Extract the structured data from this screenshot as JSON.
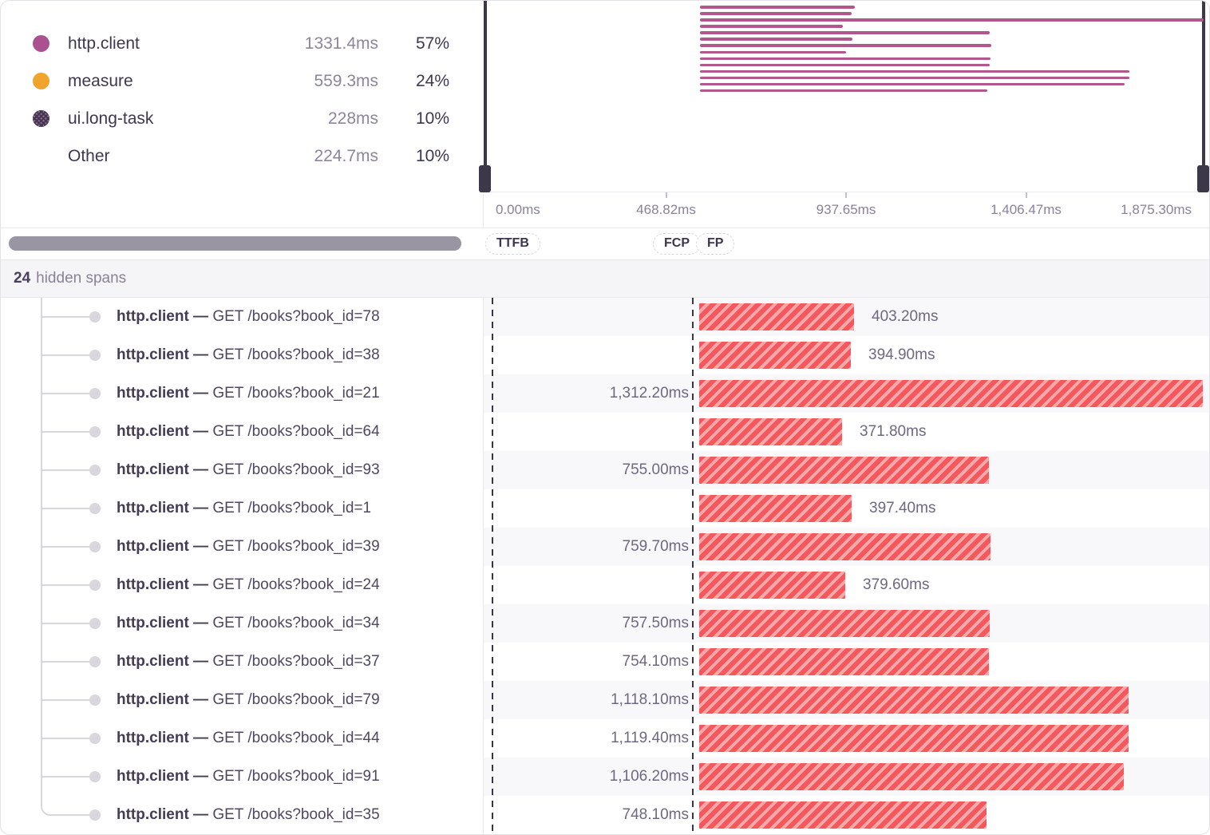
{
  "legend": {
    "items": [
      {
        "label": "http.client",
        "value": "1331.4ms",
        "percent": "57%",
        "color": "#ab5190",
        "swatch": "solid"
      },
      {
        "label": "measure",
        "value": "559.3ms",
        "percent": "24%",
        "color": "#f2a32d",
        "swatch": "solid"
      },
      {
        "label": "ui.long-task",
        "value": "228ms",
        "percent": "10%",
        "color": "#5d4b76",
        "swatch": "pattern"
      },
      {
        "label": "Other",
        "value": "224.7ms",
        "percent": "10%",
        "color": null,
        "swatch": "none"
      }
    ]
  },
  "minimap": {
    "bar_color": "#b2578e",
    "total_ms": 1875.3
  },
  "axis": {
    "tick_labels": [
      "0.00ms",
      "468.82ms",
      "937.65ms",
      "1,406.47ms",
      "1,875.30ms"
    ]
  },
  "vitals": [
    {
      "label": "TTFB"
    },
    {
      "label": "FCP"
    },
    {
      "label": "FP"
    }
  ],
  "hidden_spans": {
    "count": "24",
    "label": "hidden spans"
  },
  "spans": [
    {
      "op": "http.client",
      "separator": "—",
      "description": "GET /books?book_id=78",
      "duration": "403.20ms",
      "duration_ms": 403.2,
      "label_side": "right"
    },
    {
      "op": "http.client",
      "separator": "—",
      "description": "GET /books?book_id=38",
      "duration": "394.90ms",
      "duration_ms": 394.9,
      "label_side": "right"
    },
    {
      "op": "http.client",
      "separator": "—",
      "description": "GET /books?book_id=21",
      "duration": "1,312.20ms",
      "duration_ms": 1312.2,
      "label_side": "left"
    },
    {
      "op": "http.client",
      "separator": "—",
      "description": "GET /books?book_id=64",
      "duration": "371.80ms",
      "duration_ms": 371.8,
      "label_side": "right"
    },
    {
      "op": "http.client",
      "separator": "—",
      "description": "GET /books?book_id=93",
      "duration": "755.00ms",
      "duration_ms": 755.0,
      "label_side": "left"
    },
    {
      "op": "http.client",
      "separator": "—",
      "description": "GET /books?book_id=1",
      "duration": "397.40ms",
      "duration_ms": 397.4,
      "label_side": "right"
    },
    {
      "op": "http.client",
      "separator": "—",
      "description": "GET /books?book_id=39",
      "duration": "759.70ms",
      "duration_ms": 759.7,
      "label_side": "left"
    },
    {
      "op": "http.client",
      "separator": "—",
      "description": "GET /books?book_id=24",
      "duration": "379.60ms",
      "duration_ms": 379.6,
      "label_side": "right"
    },
    {
      "op": "http.client",
      "separator": "—",
      "description": "GET /books?book_id=34",
      "duration": "757.50ms",
      "duration_ms": 757.5,
      "label_side": "left"
    },
    {
      "op": "http.client",
      "separator": "—",
      "description": "GET /books?book_id=37",
      "duration": "754.10ms",
      "duration_ms": 754.1,
      "label_side": "left"
    },
    {
      "op": "http.client",
      "separator": "—",
      "description": "GET /books?book_id=79",
      "duration": "1,118.10ms",
      "duration_ms": 1118.1,
      "label_side": "left"
    },
    {
      "op": "http.client",
      "separator": "—",
      "description": "GET /books?book_id=44",
      "duration": "1,119.40ms",
      "duration_ms": 1119.4,
      "label_side": "left"
    },
    {
      "op": "http.client",
      "separator": "—",
      "description": "GET /books?book_id=91",
      "duration": "1,106.20ms",
      "duration_ms": 1106.2,
      "label_side": "left"
    },
    {
      "op": "http.client",
      "separator": "—",
      "description": "GET /books?book_id=35",
      "duration": "748.10ms",
      "duration_ms": 748.1,
      "label_side": "left"
    }
  ],
  "colors": {
    "minimap_bar": "#b2578e",
    "span_bar": "#f4575c",
    "span_bar_stripe": "#f9a9ac",
    "row_alt_background": "#f8f8fa",
    "marker_line": "#3a3443",
    "handle": "#3e3649"
  }
}
